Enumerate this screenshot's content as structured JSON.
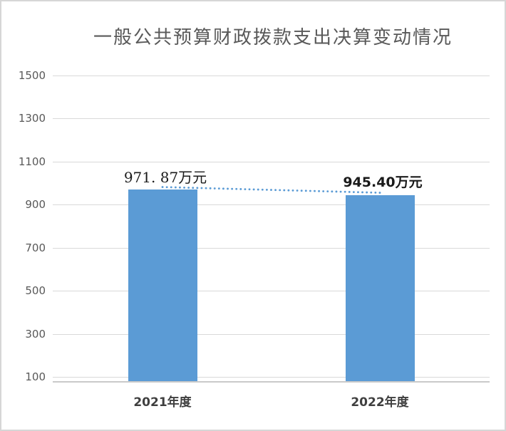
{
  "chart_data": {
    "type": "bar",
    "title": "一般公共预算财政拨款支出决算变动情况",
    "categories": [
      "2021年度",
      "2022年度"
    ],
    "values": [
      971.87,
      945.4
    ],
    "value_labels": [
      "971. 87万元",
      "945.40万元"
    ],
    "unit": "万元",
    "yticks": [
      100,
      300,
      500,
      700,
      900,
      1100,
      1300,
      1500
    ],
    "ylim": [
      80,
      1500
    ],
    "grid": true,
    "legend": "none",
    "trendline": "dotted line between bar tops",
    "colors": {
      "bar": "#5B9BD5",
      "trendline": "#5B9BD5",
      "title_text": "#595959",
      "axis_text": "#595959",
      "value_label_text": "#1a1a1a",
      "gridline": "#d9d9d9",
      "panel_border": "#d6d6d6"
    }
  }
}
